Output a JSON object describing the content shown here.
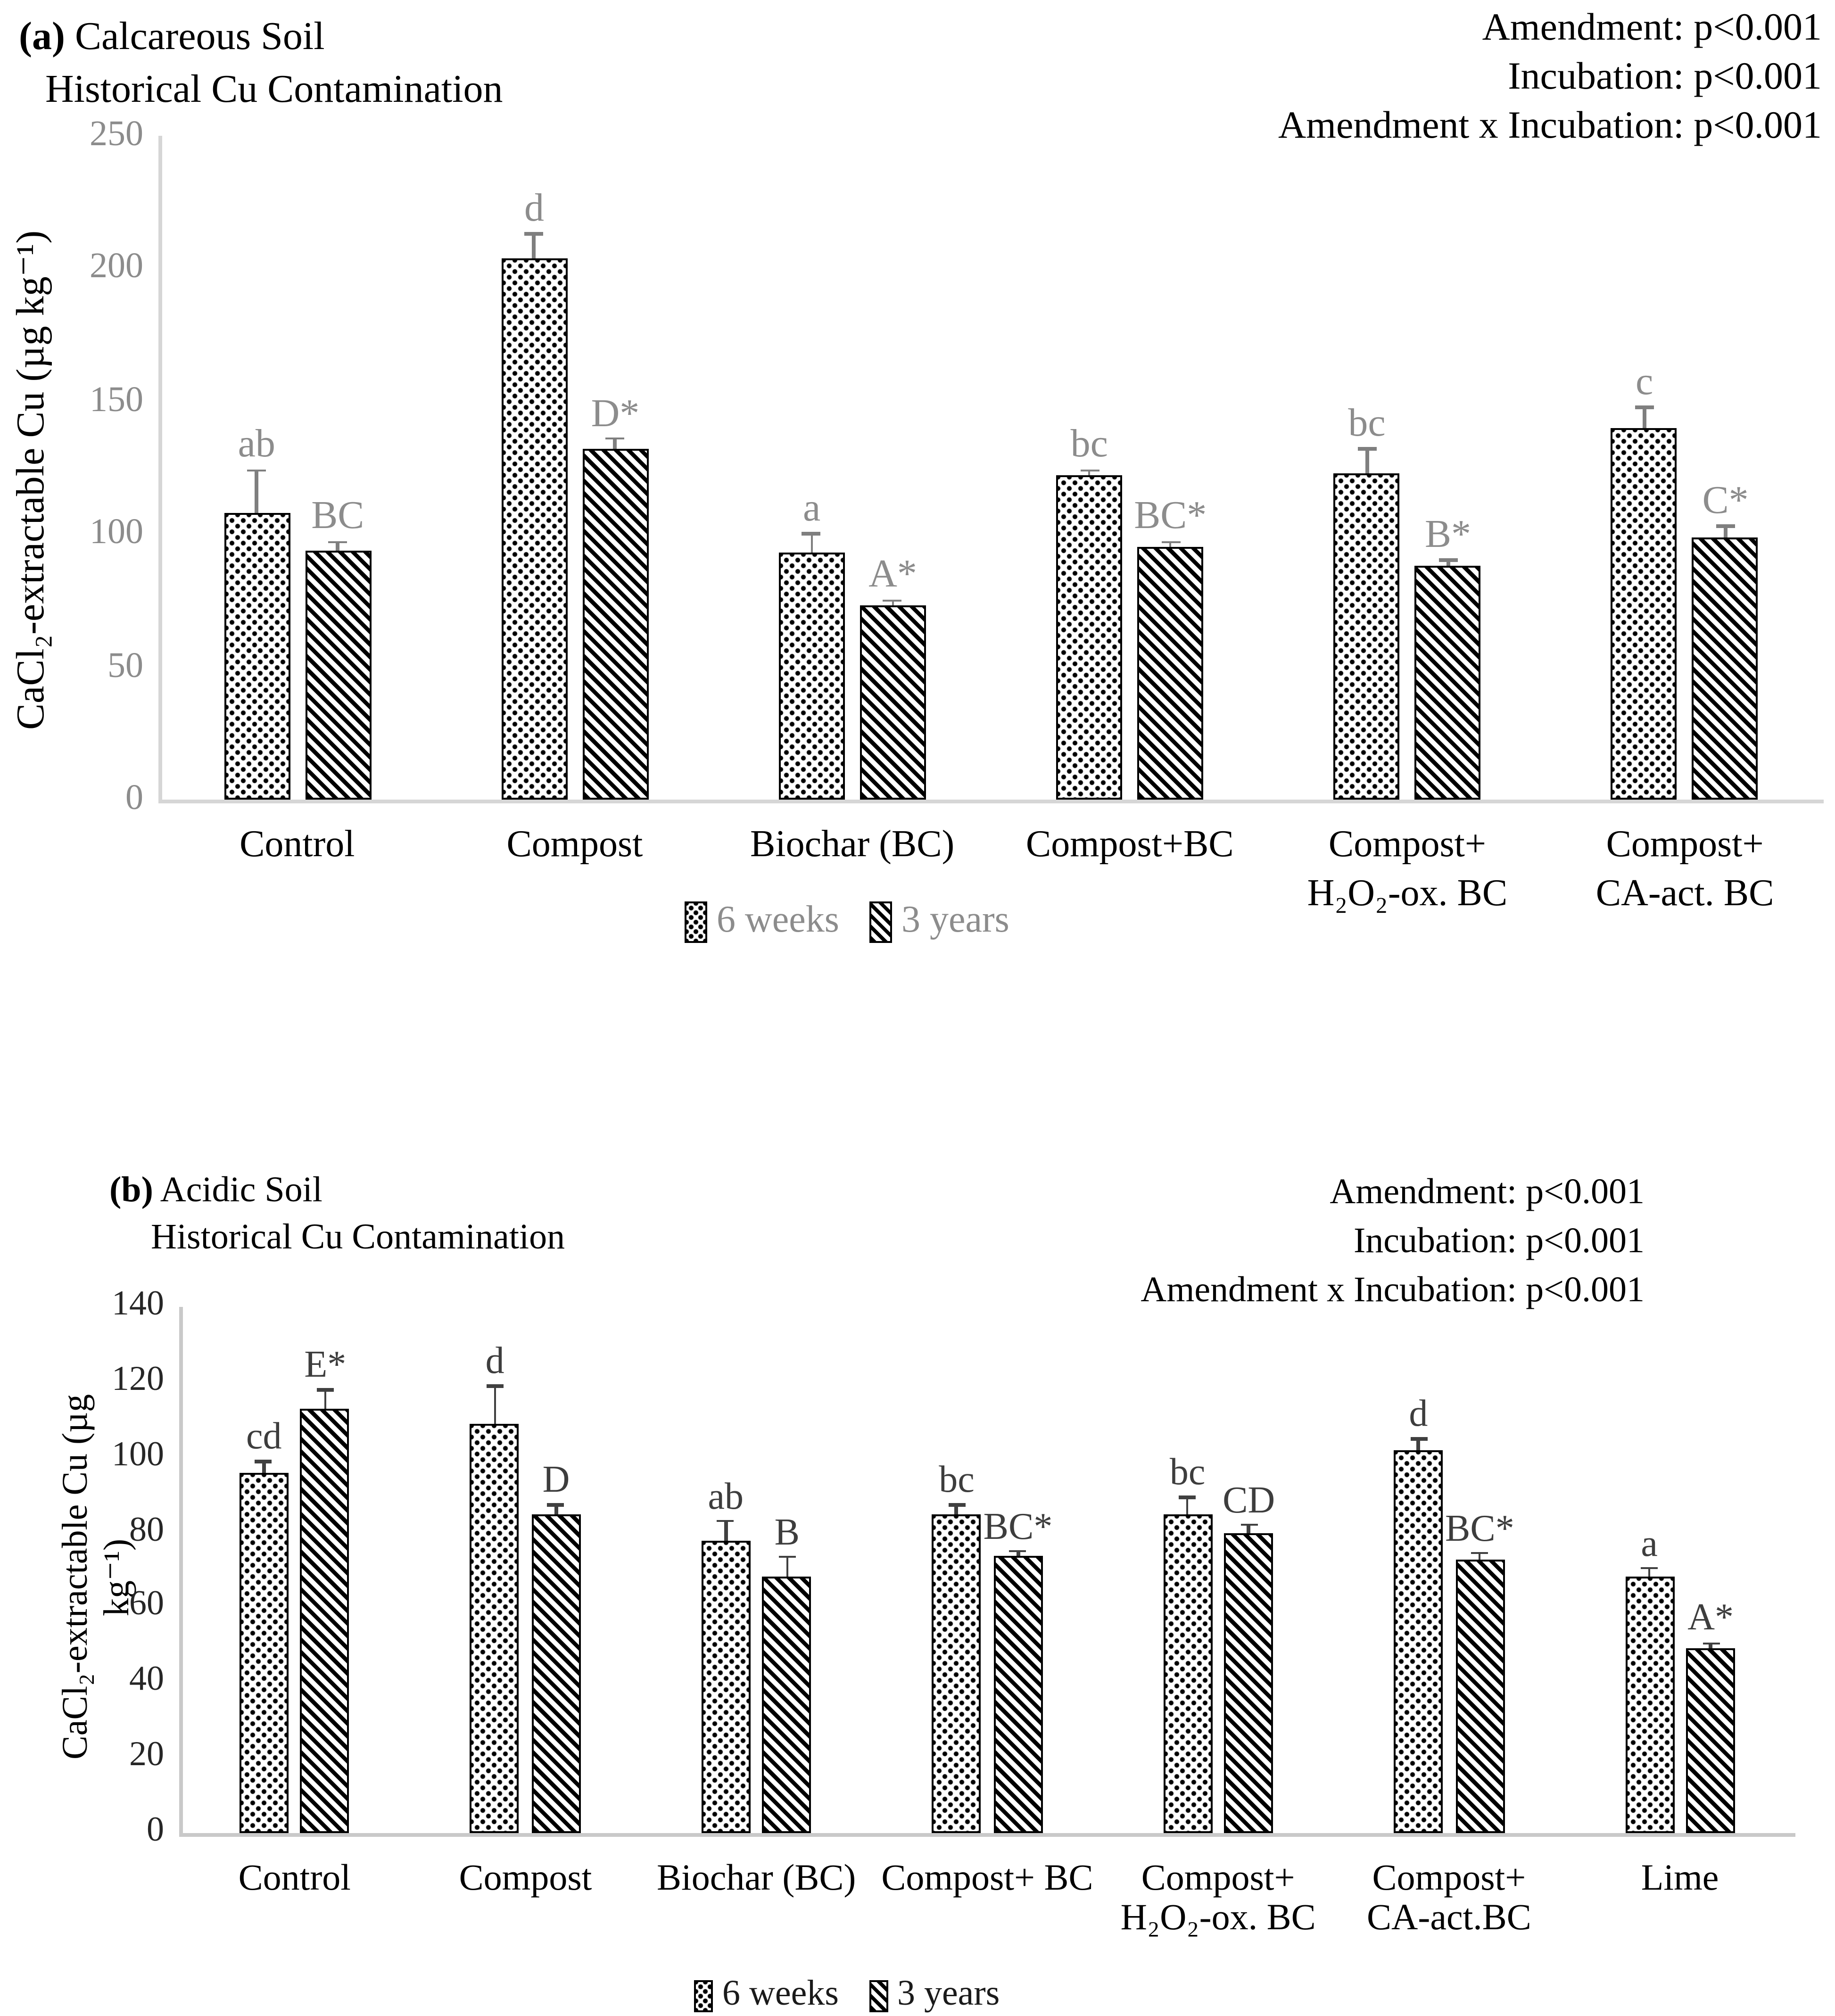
{
  "chart_data": [
    {
      "type": "bar",
      "panel_label": "(a)",
      "title": "Calcareous Soil",
      "subtitle": "Historical Cu Contamination",
      "annotations": [
        "Amendment: p<0.001",
        "Incubation: p<0.001",
        "Amendment x Incubation: p<0.001"
      ],
      "ylabel": "CaCl₂-extractable Cu (µg kg⁻¹)",
      "xlabel": "",
      "ylim": [
        0,
        250
      ],
      "yticks": [
        0,
        50,
        100,
        150,
        200,
        250
      ],
      "grid": false,
      "legend_position": "bottom",
      "categories": [
        "Control",
        "Compost",
        "Biochar (BC)",
        "Compost+BC",
        "Compost+\nH₂O₂-ox. BC",
        "Compost+\nCA-act. BC"
      ],
      "series": [
        {
          "name": "6 weeks",
          "pattern": "dots",
          "values": [
            108,
            204,
            93,
            122,
            123,
            140
          ],
          "errors": [
            16,
            9,
            7,
            2,
            9,
            8
          ],
          "letters": [
            "ab",
            "d",
            "a",
            "bc",
            "bc",
            "c"
          ]
        },
        {
          "name": "3 years",
          "pattern": "diagonal-hatch",
          "values": [
            94,
            132,
            73,
            95,
            88,
            99
          ],
          "errors": [
            3,
            4,
            2,
            2,
            2,
            4
          ],
          "letters": [
            "BC",
            "D*",
            "A*",
            "BC*",
            "B*",
            "C*"
          ]
        }
      ],
      "colors": {
        "bar_fill": "#ffffff",
        "bar_stroke": "#000000",
        "error_bar": "#7f7f7f",
        "letters": "#8c8c8c",
        "tick_labels": "#8c8c8c",
        "legend_text": "#8c8c8c",
        "axis_line": "#d6d6d6"
      }
    },
    {
      "type": "bar",
      "panel_label": "(b)",
      "title": "Acidic Soil",
      "subtitle": "Historical Cu Contamination",
      "annotations": [
        "Amendment: p<0.001",
        "Incubation: p<0.001",
        "Amendment x Incubation: p<0.001"
      ],
      "ylabel": "CaCl₂-extractable Cu (µg kg⁻¹)",
      "xlabel": "",
      "ylim": [
        0,
        140
      ],
      "yticks": [
        0,
        20,
        40,
        60,
        80,
        100,
        120,
        140
      ],
      "grid": false,
      "legend_position": "bottom",
      "categories": [
        "Control",
        "Compost",
        "Biochar (BC)",
        "Compost+ BC",
        "Compost+\nH₂O₂-ox. BC",
        "Compost+\nCA-act.BC",
        "Lime"
      ],
      "series": [
        {
          "name": "6 weeks",
          "pattern": "dots",
          "values": [
            96,
            109,
            78,
            85,
            85,
            102,
            68
          ],
          "errors": [
            3,
            10,
            5,
            2.5,
            4.5,
            3,
            2.5
          ],
          "letters": [
            "cd",
            "d",
            "ab",
            "bc",
            "bc",
            "d",
            "a"
          ]
        },
        {
          "name": "3 years",
          "pattern": "diagonal-hatch",
          "values": [
            113,
            85,
            68,
            74,
            80,
            73,
            49
          ],
          "errors": [
            5,
            2.5,
            5.5,
            1,
            2,
            1.5,
            1.5
          ],
          "letters": [
            "E*",
            "D",
            "B",
            "BC*",
            "CD",
            "BC*",
            "A*"
          ]
        }
      ],
      "colors": {
        "bar_fill": "#ffffff",
        "bar_stroke": "#000000",
        "error_bar": "#404040",
        "letters": "#3d3d3d",
        "tick_labels": "#262626",
        "legend_text": "#1a1a1a",
        "axis_line": "#c9c9c9"
      }
    }
  ]
}
